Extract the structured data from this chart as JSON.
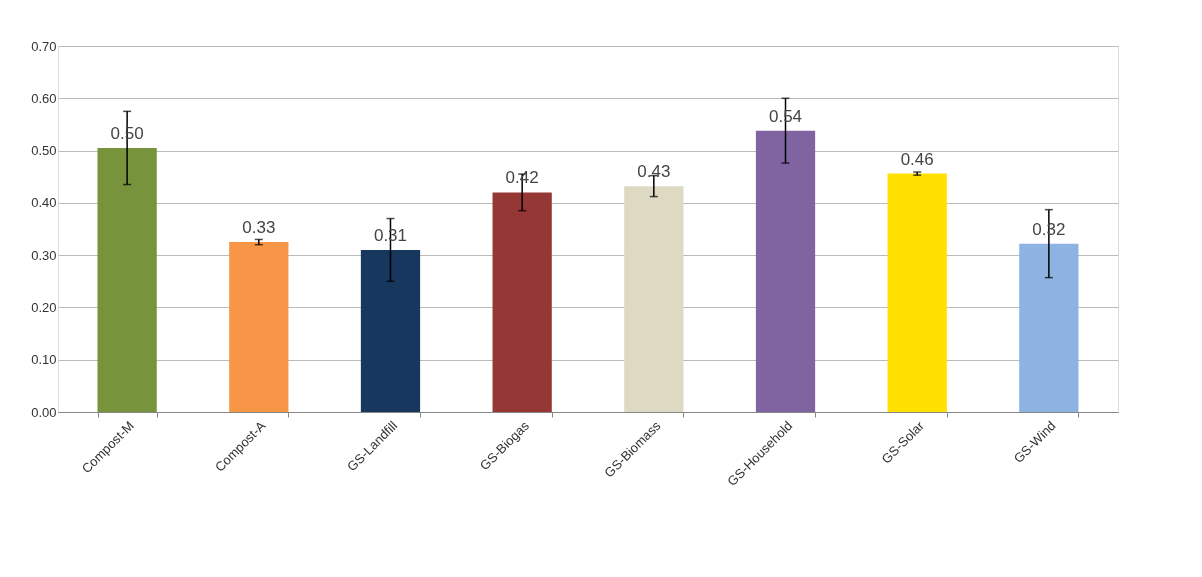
{
  "chart_data": {
    "type": "bar",
    "categories": [
      "Compost-M",
      "Compost-A",
      "GS-Landfill",
      "GS-Biogas",
      "GS-Biomass",
      "GS-Household",
      "GS-Solar",
      "GS-Wind"
    ],
    "values": [
      0.505,
      0.325,
      0.31,
      0.42,
      0.432,
      0.538,
      0.456,
      0.322
    ],
    "value_labels": [
      "0.50",
      "0.33",
      "0.31",
      "0.42",
      "0.43",
      "0.54",
      "0.46",
      "0.32"
    ],
    "errors": [
      0.07,
      0.005,
      0.06,
      0.035,
      0.02,
      0.062,
      0.003,
      0.065
    ],
    "colors": [
      "#77933c",
      "#f79646",
      "#17375e",
      "#953735",
      "#ddd9c3",
      "#8064a2",
      "#ffe000",
      "#8db3e2"
    ],
    "ylim": [
      0,
      0.7
    ],
    "yticks": [
      {
        "value": 0,
        "label": "0.00"
      },
      {
        "value": 0.1,
        "label": "0.10"
      },
      {
        "value": 0.2,
        "label": "0.20"
      },
      {
        "value": 0.3,
        "label": "0.30"
      },
      {
        "value": 0.4,
        "label": "0.40"
      },
      {
        "value": 0.5,
        "label": "0.50"
      },
      {
        "value": 0.6,
        "label": "0.60"
      },
      {
        "value": 0.7,
        "label": "0.70"
      }
    ],
    "grid": "y",
    "legend": false
  }
}
